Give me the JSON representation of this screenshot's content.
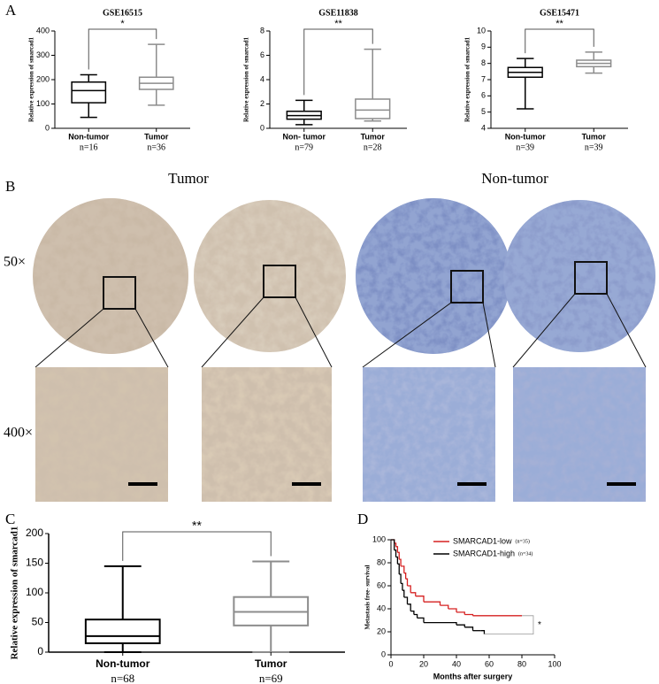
{
  "panel_labels": {
    "a": "A",
    "b": "B",
    "c": "C",
    "d": "D"
  },
  "images": {
    "tumor": "Tumor",
    "non_tumor": "Non-tumor",
    "mag_low": "50×",
    "mag_high": "400×"
  },
  "chart_data": [
    {
      "type": "box",
      "title": "GSE16515",
      "ylabel": "Relative expression of  smarcad1",
      "categories": [
        "Non-tumor",
        "Tumor"
      ],
      "n_labels": [
        "n=16",
        "n=36"
      ],
      "colors": [
        "#000000",
        "#8c8c8c"
      ],
      "boxes": [
        {
          "min": 45,
          "q1": 105,
          "median": 155,
          "q3": 190,
          "max": 220
        },
        {
          "min": 95,
          "q1": 160,
          "median": 185,
          "q3": 210,
          "max": 345
        }
      ],
      "significance": "*",
      "ylim": [
        0,
        400
      ],
      "yticks": [
        0,
        100,
        200,
        300,
        400
      ]
    },
    {
      "type": "box",
      "title": "GSE11838",
      "ylabel": "Relative expression of  smarcad1",
      "categories": [
        "Non- tumor",
        "Tumor"
      ],
      "n_labels": [
        "n=79",
        "n=28"
      ],
      "colors": [
        "#000000",
        "#8c8c8c"
      ],
      "boxes": [
        {
          "min": 0.3,
          "q1": 0.75,
          "median": 1.05,
          "q3": 1.4,
          "max": 2.3
        },
        {
          "min": 0.6,
          "q1": 0.8,
          "median": 1.5,
          "q3": 2.4,
          "max": 6.5
        }
      ],
      "significance": "**",
      "ylim": [
        0,
        8
      ],
      "yticks": [
        0,
        2,
        4,
        6,
        8
      ]
    },
    {
      "type": "box",
      "title": "GSE15471",
      "ylabel": "Relative expression of  smarcad1",
      "categories": [
        "Non-tumor",
        "Tumor"
      ],
      "n_labels": [
        "n=39",
        "n=39"
      ],
      "colors": [
        "#000000",
        "#8c8c8c"
      ],
      "boxes": [
        {
          "min": 5.2,
          "q1": 7.15,
          "median": 7.45,
          "q3": 7.75,
          "max": 8.3
        },
        {
          "min": 7.4,
          "q1": 7.8,
          "median": 8.0,
          "q3": 8.2,
          "max": 8.7
        }
      ],
      "significance": "**",
      "ylim": [
        4,
        10
      ],
      "yticks": [
        4,
        5,
        6,
        7,
        8,
        9,
        10
      ]
    },
    {
      "type": "box",
      "ylabel": "Relative expression of  smarcad1",
      "categories": [
        "Non-tumor",
        "Tumor"
      ],
      "n_labels": [
        "n=68",
        "n=69"
      ],
      "colors": [
        "#000000",
        "#8c8c8c"
      ],
      "boxes": [
        {
          "min": 0,
          "q1": 15,
          "median": 27,
          "q3": 55,
          "max": 145
        },
        {
          "min": 0,
          "q1": 45,
          "median": 68,
          "q3": 93,
          "max": 153
        }
      ],
      "significance": "**",
      "ylim": [
        0,
        200
      ],
      "yticks": [
        0,
        50,
        100,
        150,
        200
      ]
    },
    {
      "type": "km",
      "xlabel": "Months after surgery",
      "ylabel": "Metastasis free- survival",
      "series": [
        {
          "name": "SMARCAD1-low",
          "n_label": "(n=35)",
          "color": "#d62020",
          "x": [
            0,
            2,
            3,
            4,
            5,
            6,
            8,
            9,
            10,
            12,
            15,
            20,
            30,
            35,
            40,
            45,
            50,
            80
          ],
          "values": [
            100,
            97,
            94,
            89,
            83,
            77,
            71,
            66,
            60,
            54,
            51,
            46,
            43,
            40,
            37,
            35,
            34,
            34
          ]
        },
        {
          "name": "SMARCAD1-high",
          "n_label": "(n=34)",
          "color": "#000000",
          "x": [
            0,
            2,
            3,
            4,
            5,
            6,
            7,
            8,
            10,
            12,
            14,
            16,
            20,
            40,
            45,
            50,
            55,
            57
          ],
          "values": [
            100,
            91,
            85,
            79,
            70,
            62,
            56,
            50,
            44,
            38,
            35,
            32,
            28,
            26,
            24,
            21,
            21,
            18
          ]
        }
      ],
      "significance": "*",
      "xlim": [
        0,
        100
      ],
      "xticks": [
        0,
        20,
        40,
        60,
        80,
        100
      ],
      "ylim": [
        0,
        100
      ],
      "yticks": [
        0,
        20,
        40,
        60,
        80,
        100
      ]
    }
  ]
}
